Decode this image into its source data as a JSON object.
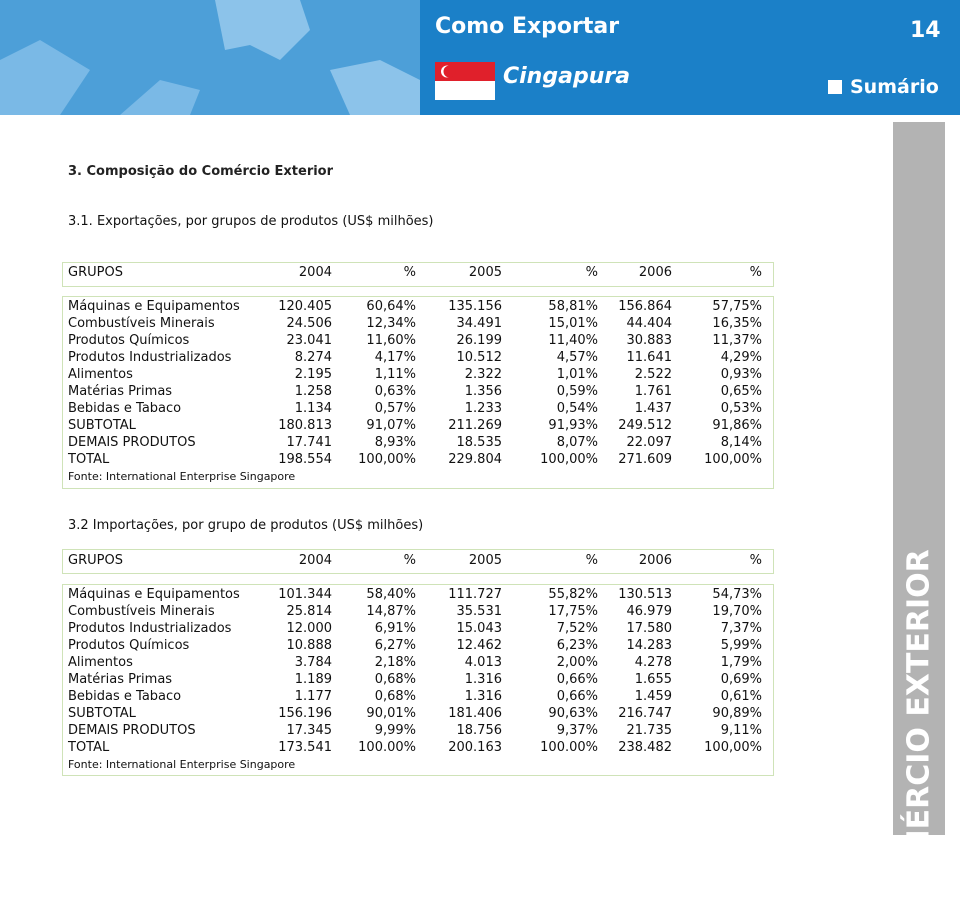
{
  "header": {
    "series": "Como Exportar",
    "page": "14",
    "country": "Cingapura",
    "menu": "Sumário"
  },
  "side_label": "COMÉRCIO EXTERIOR",
  "section_title": "3. Composição do Comércio Exterior",
  "tables": [
    {
      "title": "3.1. Exportações, por grupos de produtos (US$ milhões)",
      "columns": [
        "GRUPOS",
        "2004",
        "%",
        "2005",
        "%",
        "2006",
        "%"
      ],
      "rows": [
        [
          "Máquinas e Equipamentos",
          "120.405",
          "60,64%",
          "135.156",
          "58,81%",
          "156.864",
          "57,75%"
        ],
        [
          "Combustíveis Minerais",
          "24.506",
          "12,34%",
          "34.491",
          "15,01%",
          "44.404",
          "16,35%"
        ],
        [
          "Produtos Químicos",
          "23.041",
          "11,60%",
          "26.199",
          "11,40%",
          "30.883",
          "11,37%"
        ],
        [
          "Produtos Industrializados",
          "8.274",
          "4,17%",
          "10.512",
          "4,57%",
          "11.641",
          "4,29%"
        ],
        [
          "Alimentos",
          "2.195",
          "1,11%",
          "2.322",
          "1,01%",
          "2.522",
          "0,93%"
        ],
        [
          "Matérias Primas",
          "1.258",
          "0,63%",
          "1.356",
          "0,59%",
          "1.761",
          "0,65%"
        ],
        [
          "Bebidas e Tabaco",
          "1.134",
          "0,57%",
          "1.233",
          "0,54%",
          "1.437",
          "0,53%"
        ],
        [
          "SUBTOTAL",
          "180.813",
          "91,07%",
          "211.269",
          "91,93%",
          "249.512",
          "91,86%"
        ],
        [
          "DEMAIS PRODUTOS",
          "17.741",
          "8,93%",
          "18.535",
          "8,07%",
          "22.097",
          "8,14%"
        ],
        [
          "TOTAL",
          "198.554",
          "100,00%",
          "229.804",
          "100,00%",
          "271.609",
          "100,00%"
        ]
      ],
      "source": "Fonte: International Enterprise Singapore"
    },
    {
      "title": "3.2 Importações, por grupo de produtos (US$ milhões)",
      "columns": [
        "GRUPOS",
        "2004",
        "%",
        "2005",
        "%",
        "2006",
        "%"
      ],
      "rows": [
        [
          "Máquinas e Equipamentos",
          "101.344",
          "58,40%",
          "111.727",
          "55,82%",
          "130.513",
          "54,73%"
        ],
        [
          "Combustíveis Minerais",
          "25.814",
          "14,87%",
          "35.531",
          "17,75%",
          "46.979",
          "19,70%"
        ],
        [
          "Produtos Industrializados",
          "12.000",
          "6,91%",
          "15.043",
          "7,52%",
          "17.580",
          "7,37%"
        ],
        [
          "Produtos Químicos",
          "10.888",
          "6,27%",
          "12.462",
          "6,23%",
          "14.283",
          "5,99%"
        ],
        [
          "Alimentos",
          "3.784",
          "2,18%",
          "4.013",
          "2,00%",
          "4.278",
          "1,79%"
        ],
        [
          "Matérias Primas",
          "1.189",
          "0,68%",
          "1.316",
          "0,66%",
          "1.655",
          "0,69%"
        ],
        [
          "Bebidas e Tabaco",
          "1.177",
          "0,68%",
          "1.316",
          "0,66%",
          "1.459",
          "0,61%"
        ],
        [
          "SUBTOTAL",
          "156.196",
          "90,01%",
          "181.406",
          "90,63%",
          "216.747",
          "90,89%"
        ],
        [
          "DEMAIS PRODUTOS",
          "17.345",
          "9,99%",
          "18.756",
          "9,37%",
          "21.735",
          "9,11%"
        ],
        [
          "TOTAL",
          "173.541",
          "100.00%",
          "200.163",
          "100.00%",
          "238.482",
          "100,00%"
        ]
      ],
      "source": "Fonte: International Enterprise Singapore"
    }
  ]
}
